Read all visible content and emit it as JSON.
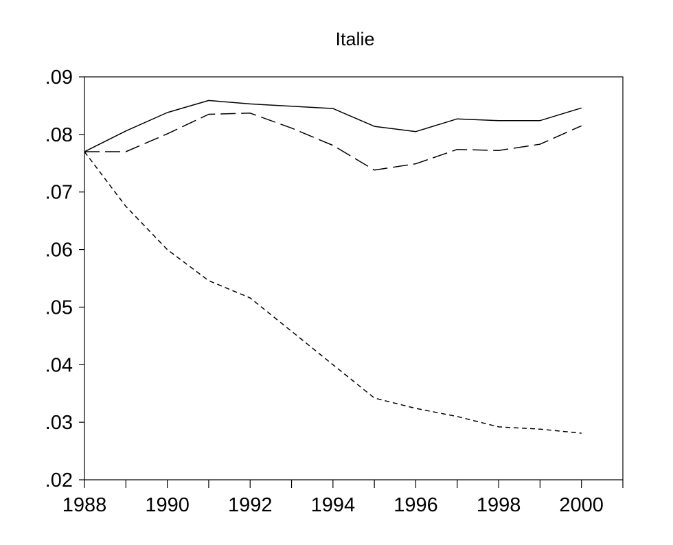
{
  "chart_data": {
    "type": "line",
    "title": "Italie",
    "xlabel": "",
    "ylabel": "",
    "xlim": [
      1988,
      2001
    ],
    "ylim": [
      0.02,
      0.09
    ],
    "x_ticks": [
      1988,
      1989,
      1990,
      1991,
      1992,
      1993,
      1994,
      1995,
      1996,
      1997,
      1998,
      1999,
      2000,
      2001
    ],
    "x_tick_labels": [
      {
        "value": 1988,
        "label": "1988"
      },
      {
        "value": 1990,
        "label": "1990"
      },
      {
        "value": 1992,
        "label": "1992"
      },
      {
        "value": 1994,
        "label": "1994"
      },
      {
        "value": 1996,
        "label": "1996"
      },
      {
        "value": 1998,
        "label": "1998"
      },
      {
        "value": 2000,
        "label": "2000"
      }
    ],
    "y_ticks": [
      {
        "value": 0.02,
        "label": ".02"
      },
      {
        "value": 0.03,
        "label": ".03"
      },
      {
        "value": 0.04,
        "label": ".04"
      },
      {
        "value": 0.05,
        "label": ".05"
      },
      {
        "value": 0.06,
        "label": ".06"
      },
      {
        "value": 0.07,
        "label": ".07"
      },
      {
        "value": 0.08,
        "label": ".08"
      },
      {
        "value": 0.09,
        "label": ".09"
      }
    ],
    "grid": false,
    "legend": "none",
    "x": [
      1988,
      1989,
      1990,
      1991,
      1992,
      1993,
      1994,
      1995,
      1996,
      1997,
      1998,
      1999,
      2000
    ],
    "series": [
      {
        "style": "solid",
        "values": [
          0.077,
          0.0806,
          0.0838,
          0.0859,
          0.0853,
          0.0849,
          0.0845,
          0.0814,
          0.0805,
          0.0827,
          0.0824,
          0.0824,
          0.0846
        ]
      },
      {
        "style": "long-dash",
        "values": [
          0.077,
          0.077,
          0.0801,
          0.0835,
          0.0837,
          0.0811,
          0.0781,
          0.0738,
          0.0749,
          0.0774,
          0.0772,
          0.0783,
          0.0815
        ]
      },
      {
        "style": "short-dash",
        "values": [
          0.077,
          0.0675,
          0.06,
          0.0546,
          0.0516,
          0.0458,
          0.04,
          0.0342,
          0.0324,
          0.031,
          0.0292,
          0.0288,
          0.0281
        ]
      }
    ],
    "color": "#000000"
  }
}
